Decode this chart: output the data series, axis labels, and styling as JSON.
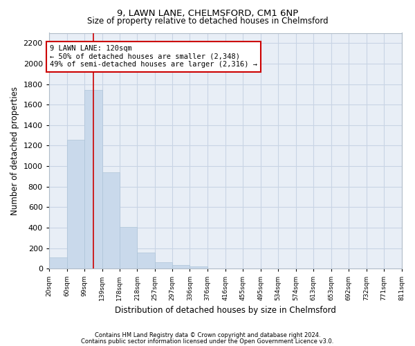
{
  "title1": "9, LAWN LANE, CHELMSFORD, CM1 6NP",
  "title2": "Size of property relative to detached houses in Chelmsford",
  "xlabel": "Distribution of detached houses by size in Chelmsford",
  "ylabel": "Number of detached properties",
  "footnote1": "Contains HM Land Registry data © Crown copyright and database right 2024.",
  "footnote2": "Contains public sector information licensed under the Open Government Licence v3.0.",
  "bar_color": "#c9d9eb",
  "bar_edge_color": "#adc4d8",
  "grid_color": "#c8d4e4",
  "background_color": "#e8eef6",
  "vline_color": "#cc0000",
  "vline_x": 119,
  "annotation_text": "9 LAWN LANE: 120sqm\n← 50% of detached houses are smaller (2,348)\n49% of semi-detached houses are larger (2,316) →",
  "annotation_box_color": "#ffffff",
  "annotation_border_color": "#cc0000",
  "bins": [
    20,
    60,
    99,
    139,
    178,
    218,
    257,
    297,
    336,
    376,
    416,
    455,
    495,
    534,
    574,
    613,
    653,
    692,
    732,
    771,
    811
  ],
  "values": [
    110,
    1260,
    1740,
    940,
    410,
    155,
    65,
    35,
    20,
    0,
    0,
    0,
    0,
    0,
    0,
    0,
    0,
    0,
    0,
    0
  ],
  "ylim": [
    0,
    2300
  ],
  "yticks": [
    0,
    200,
    400,
    600,
    800,
    1000,
    1200,
    1400,
    1600,
    1800,
    2000,
    2200
  ]
}
